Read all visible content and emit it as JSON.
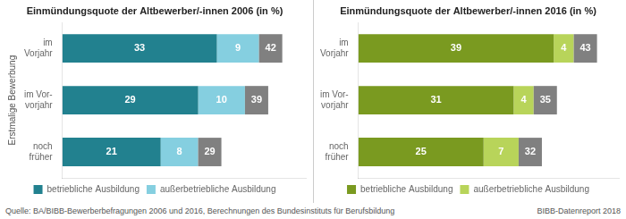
{
  "chart_data": [
    {
      "type": "bar",
      "orientation": "horizontal",
      "stacked": true,
      "data_labels": true,
      "title": "Einmündungsquote der Altbewerber/-innen 2006 (in %)",
      "ylabel": "Erstmalige Bewerbung",
      "categories": [
        "im\nVorjahr",
        "im Vor-\nvorjahr",
        "noch\nfrüher"
      ],
      "series": [
        {
          "name": "betriebliche Ausbildung",
          "color": "#22818f",
          "values": [
            33,
            29,
            21
          ]
        },
        {
          "name": "außerbetriebliche Ausbildung",
          "color": "#85cfe0",
          "values": [
            9,
            10,
            8
          ]
        }
      ],
      "totals": {
        "values": [
          42,
          39,
          29
        ],
        "color": "#808080"
      },
      "xlim": [
        0,
        52
      ],
      "tick_labels": "y",
      "grid": false,
      "legend": "bottom",
      "annotations": [
        "Quelle: BA/BIBB-Bewerberbefragungen 2006 und 2016, Berechnungen des Bundesinstituts für Berufsbildung"
      ]
    },
    {
      "type": "bar",
      "orientation": "horizontal",
      "stacked": true,
      "data_labels": true,
      "title": "Einmündungsquote der Altbewerber/-innen 2016 (in %)",
      "categories": [
        "im\nVorjahr",
        "im Vor-\nvorjahr",
        "noch\nfrüher"
      ],
      "series": [
        {
          "name": "betriebliche Ausbildung",
          "color": "#7a9a20",
          "values": [
            39,
            31,
            25
          ]
        },
        {
          "name": "außerbetriebliche Ausbildung",
          "color": "#b8d45a",
          "values": [
            4,
            4,
            7
          ]
        }
      ],
      "totals": {
        "values": [
          43,
          35,
          32
        ],
        "color": "#808080"
      },
      "xlim": [
        0,
        52
      ],
      "tick_labels": "y",
      "grid": false,
      "legend": "bottom",
      "annotations": [
        "BIBB-Datenreport 2018"
      ]
    }
  ]
}
